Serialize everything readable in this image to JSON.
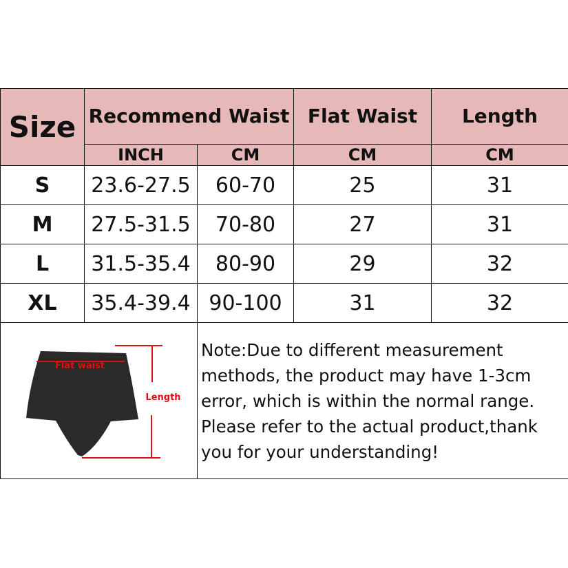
{
  "header": {
    "size": "Size",
    "recommend_waist": "Recommend Waist",
    "flat_waist": "Flat Waist",
    "length": "Length",
    "units": [
      "INCH",
      "CM",
      "CM",
      "CM"
    ]
  },
  "rows": [
    {
      "size": "S",
      "inch": "23.6-27.5",
      "cm": "60-70",
      "flat_waist": "25",
      "length": "31"
    },
    {
      "size": "M",
      "inch": "27.5-31.5",
      "cm": "70-80",
      "flat_waist": "27",
      "length": "31"
    },
    {
      "size": "L",
      "inch": "31.5-35.4",
      "cm": "80-90",
      "flat_waist": "29",
      "length": "32"
    },
    {
      "size": "XL",
      "inch": "35.4-39.4",
      "cm": "90-100",
      "flat_waist": "31",
      "length": "32"
    }
  ],
  "diagram": {
    "flat_waist_label": "Flat waist",
    "length_label": "Length",
    "accent": "#e01010"
  },
  "note": "Note:Due to different measurement methods, the product may have 1-3cm error, which is within the normal range. Please refer to the actual product,thank you for your understanding!",
  "colors": {
    "header_bg": "#e6b8b8"
  }
}
